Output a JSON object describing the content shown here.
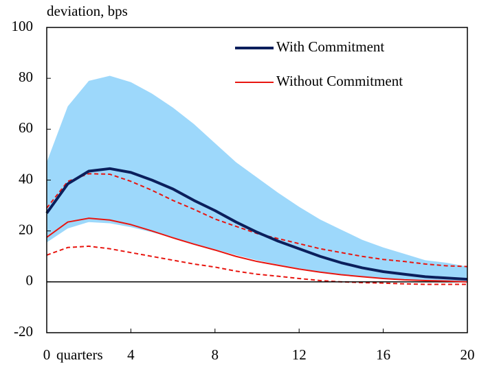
{
  "chart_data": {
    "type": "line",
    "ylabel": "deviation, bps",
    "xlabel": "quarters",
    "x": [
      0,
      1,
      2,
      3,
      4,
      5,
      6,
      7,
      8,
      9,
      10,
      11,
      12,
      13,
      14,
      15,
      16,
      17,
      18,
      19,
      20
    ],
    "xlim": [
      0,
      20
    ],
    "xticks": [
      0,
      4,
      8,
      12,
      16,
      20
    ],
    "ylim": [
      -20,
      100
    ],
    "yticks": [
      -20,
      0,
      20,
      40,
      60,
      80,
      100
    ],
    "series": [
      {
        "name": "With Commitment",
        "color": "#0b1f5c",
        "width": 4,
        "values": [
          27,
          38.5,
          43.5,
          44.5,
          43,
          40,
          36.5,
          32,
          28,
          23.5,
          19.5,
          16,
          13,
          10,
          7.5,
          5.5,
          4,
          3,
          2,
          1.5,
          1
        ]
      },
      {
        "name": "Without Commitment",
        "color": "#e8150f",
        "width": 2,
        "values": [
          17.5,
          23.5,
          25,
          24.3,
          22.5,
          20,
          17.3,
          14.8,
          12.5,
          10,
          8,
          6.5,
          5,
          3.8,
          2.8,
          2,
          1.3,
          0.8,
          0.5,
          0.3,
          0
        ]
      }
    ],
    "bands": [
      {
        "color": "#9dd8fb",
        "fill": true,
        "upper": [
          47,
          69,
          79,
          81,
          78.5,
          74,
          68.5,
          62,
          54.5,
          47,
          41,
          35,
          29.5,
          24.5,
          20.5,
          16.5,
          13.5,
          11,
          8.5,
          7.5,
          6
        ],
        "lower": [
          15.5,
          21,
          23.5,
          23,
          21.5,
          19.5,
          17.3,
          15,
          12.8,
          10.5,
          8.5,
          6.8,
          5.3,
          4,
          3,
          2,
          1.3,
          0.8,
          0.5,
          0.3,
          0.2
        ]
      },
      {
        "color": "#e8150f",
        "fill": false,
        "upper": [
          29,
          39.5,
          42.5,
          42.3,
          39.5,
          36,
          32,
          28.5,
          24.7,
          21.8,
          19,
          17,
          15,
          13,
          11.5,
          10,
          8.8,
          8,
          7,
          6.3,
          6
        ],
        "lower": [
          10.5,
          13.5,
          14,
          13,
          11.5,
          10,
          8.5,
          7,
          5.8,
          4.2,
          3,
          2.2,
          1.3,
          0.5,
          0,
          -0.3,
          -0.5,
          -0.8,
          -1,
          -1,
          -1
        ]
      }
    ]
  }
}
